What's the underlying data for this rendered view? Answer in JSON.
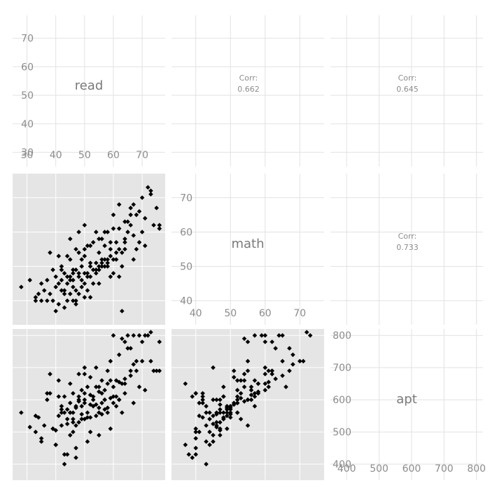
{
  "chart_data": {
    "type": "scatter-matrix",
    "variables": [
      {
        "name": "read",
        "range": [
          25,
          78
        ],
        "ticks": [
          30,
          40,
          50,
          60,
          70
        ]
      },
      {
        "name": "math",
        "range": [
          33,
          77
        ],
        "ticks": [
          40,
          50,
          60,
          70
        ]
      },
      {
        "name": "apt",
        "range": [
          350,
          820
        ],
        "ticks": [
          400,
          500,
          600,
          700,
          800
        ]
      }
    ],
    "correlations": [
      {
        "row": 0,
        "col": 1,
        "label": "Corr:",
        "value": "0.662"
      },
      {
        "row": 0,
        "col": 2,
        "label": "Corr:",
        "value": "0.645"
      },
      {
        "row": 1,
        "col": 2,
        "label": "Corr:",
        "value": "0.733"
      }
    ],
    "points": [
      [
        28,
        44,
        560
      ],
      [
        31,
        46,
        515
      ],
      [
        33,
        40,
        500
      ],
      [
        33,
        41,
        550
      ],
      [
        34,
        42,
        545
      ],
      [
        35,
        40,
        480
      ],
      [
        35,
        45,
        470
      ],
      [
        36,
        43,
        520
      ],
      [
        37,
        46,
        600
      ],
      [
        38,
        54,
        680
      ],
      [
        38,
        42,
        620
      ],
      [
        39,
        49,
        510
      ],
      [
        39,
        40,
        510
      ],
      [
        40,
        37,
        460
      ],
      [
        40,
        44,
        460
      ],
      [
        41,
        39,
        610
      ],
      [
        41,
        53,
        660
      ],
      [
        41,
        45,
        550
      ],
      [
        42,
        50,
        580
      ],
      [
        42,
        43,
        560
      ],
      [
        42,
        49,
        570
      ],
      [
        43,
        48,
        560
      ],
      [
        43,
        43,
        400
      ],
      [
        44,
        40,
        430
      ],
      [
        44,
        47,
        570
      ],
      [
        44,
        53,
        540
      ],
      [
        45,
        42,
        590
      ],
      [
        45,
        46,
        560
      ],
      [
        46,
        40,
        620
      ],
      [
        46,
        44,
        500
      ],
      [
        46,
        49,
        560
      ],
      [
        47,
        43,
        580
      ],
      [
        47,
        55,
        520
      ],
      [
        47,
        39,
        420
      ],
      [
        48,
        42,
        600
      ],
      [
        48,
        60,
        680
      ],
      [
        48,
        48,
        610
      ],
      [
        49,
        44,
        540
      ],
      [
        49,
        52,
        630
      ],
      [
        50,
        41,
        590
      ],
      [
        50,
        45,
        700
      ],
      [
        50,
        53,
        620
      ],
      [
        51,
        47,
        560
      ],
      [
        51,
        56,
        640
      ],
      [
        52,
        41,
        500
      ],
      [
        52,
        51,
        670
      ],
      [
        53,
        57,
        610
      ],
      [
        53,
        45,
        600
      ],
      [
        54,
        48,
        640
      ],
      [
        54,
        60,
        700
      ],
      [
        55,
        50,
        560
      ],
      [
        55,
        54,
        640
      ],
      [
        56,
        52,
        660
      ],
      [
        56,
        58,
        620
      ],
      [
        57,
        56,
        600
      ],
      [
        57,
        50,
        570
      ],
      [
        58,
        51,
        690
      ],
      [
        58,
        60,
        650
      ],
      [
        59,
        55,
        720
      ],
      [
        59,
        57,
        660
      ],
      [
        60,
        48,
        610
      ],
      [
        60,
        65,
        800
      ],
      [
        61,
        54,
        660
      ],
      [
        61,
        57,
        580
      ],
      [
        62,
        47,
        600
      ],
      [
        62,
        68,
        740
      ],
      [
        63,
        37,
        650
      ],
      [
        63,
        54,
        790
      ],
      [
        64,
        55,
        780
      ],
      [
        64,
        58,
        650
      ],
      [
        65,
        63,
        760
      ],
      [
        65,
        60,
        800
      ],
      [
        66,
        67,
        760
      ],
      [
        66,
        62,
        690
      ],
      [
        67,
        68,
        710
      ],
      [
        67,
        59,
        800
      ],
      [
        68,
        65,
        720
      ],
      [
        68,
        55,
        690
      ],
      [
        69,
        57,
        800
      ],
      [
        69,
        66,
        640
      ],
      [
        70,
        70,
        720
      ],
      [
        70,
        60,
        780
      ],
      [
        71,
        64,
        800
      ],
      [
        72,
        73,
        800
      ],
      [
        73,
        72,
        810
      ],
      [
        73,
        71,
        720
      ],
      [
        74,
        62,
        690
      ],
      [
        75,
        67,
        690
      ],
      [
        76,
        62,
        780
      ],
      [
        76,
        61,
        690
      ],
      [
        37,
        40,
        620
      ],
      [
        43,
        42,
        610
      ],
      [
        45,
        47,
        490
      ],
      [
        46,
        48,
        540
      ],
      [
        49,
        46,
        555
      ],
      [
        51,
        48,
        545
      ],
      [
        52,
        47,
        585
      ],
      [
        53,
        49,
        580
      ],
      [
        55,
        49,
        575
      ],
      [
        56,
        51,
        590
      ],
      [
        58,
        50,
        575
      ],
      [
        60,
        52,
        590
      ],
      [
        47,
        49,
        575
      ],
      [
        49,
        50,
        580
      ],
      [
        54,
        51,
        585
      ],
      [
        57,
        52,
        600
      ],
      [
        59,
        53,
        605
      ],
      [
        61,
        52,
        610
      ],
      [
        62,
        55,
        600
      ],
      [
        64,
        57,
        620
      ],
      [
        45,
        52,
        560
      ],
      [
        48,
        54,
        595
      ],
      [
        50,
        55,
        600
      ],
      [
        52,
        56,
        615
      ],
      [
        55,
        58,
        625
      ],
      [
        57,
        60,
        630
      ],
      [
        60,
        61,
        640
      ],
      [
        62,
        61,
        655
      ],
      [
        64,
        63,
        665
      ],
      [
        66,
        65,
        675
      ],
      [
        40,
        47,
        505
      ],
      [
        42,
        46,
        520
      ],
      [
        44,
        45,
        525
      ],
      [
        46,
        46,
        530
      ],
      [
        48,
        47,
        530
      ],
      [
        50,
        48,
        540
      ],
      [
        52,
        50,
        545
      ],
      [
        54,
        49,
        550
      ],
      [
        56,
        50,
        555
      ],
      [
        58,
        52,
        560
      ],
      [
        43,
        38,
        430
      ],
      [
        47,
        40,
        450
      ],
      [
        51,
        43,
        470
      ],
      [
        55,
        45,
        490
      ],
      [
        59,
        47,
        510
      ],
      [
        63,
        50,
        560
      ],
      [
        67,
        52,
        590
      ],
      [
        71,
        56,
        630
      ],
      [
        45,
        58,
        650
      ],
      [
        50,
        62,
        680
      ]
    ]
  }
}
